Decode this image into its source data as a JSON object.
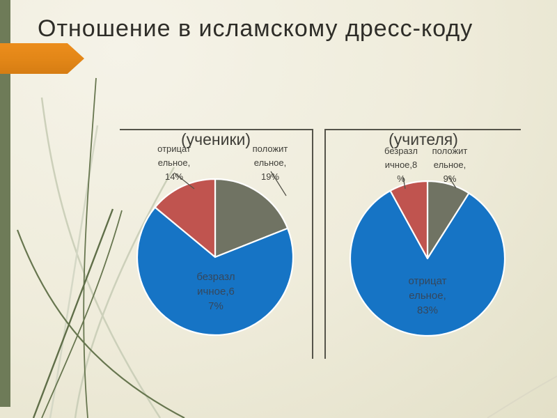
{
  "slide": {
    "title": "Отношение в исламскому дресс-коду",
    "theme_colors": {
      "background": "#efecdb",
      "accent_bar": "#6e7b58",
      "arrow": "#e28617",
      "frame_line": "#55544a",
      "grass_dark": "#67764f",
      "grass_light": "#ccd0ba"
    }
  },
  "chart_data": [
    {
      "type": "pie",
      "title": "(ученики)",
      "legend_position": "none",
      "slices": [
        {
          "name": "положительное",
          "value": 19,
          "color": "#707363"
        },
        {
          "name": "безразличное",
          "value": 67,
          "color": "#1674c5"
        },
        {
          "name": "отрицательное",
          "value": 14,
          "color": "#c0544f"
        }
      ],
      "callouts": {
        "negative": {
          "label": "отрицательное, 14%",
          "lines": [
            "отрицат",
            "ельное,",
            "14%"
          ]
        },
        "positive": {
          "label": "положительное, 19%",
          "lines": [
            "положит",
            "ельное,",
            "19%"
          ]
        },
        "inside": {
          "label": "безразличное, 67%",
          "lines": [
            "безразл",
            "ичное,6",
            "7%"
          ]
        }
      }
    },
    {
      "type": "pie",
      "title": "(учителя)",
      "legend_position": "none",
      "slices": [
        {
          "name": "положительное",
          "value": 9,
          "color": "#707363"
        },
        {
          "name": "отрицательное",
          "value": 83,
          "color": "#1674c5"
        },
        {
          "name": "безразличное",
          "value": 8,
          "color": "#c0544f"
        }
      ],
      "callouts": {
        "indifferent": {
          "label": "безразличное, 8%",
          "lines": [
            "безразл",
            "ичное,8",
            "%"
          ]
        },
        "positive": {
          "label": "положительное, 9%",
          "lines": [
            "положит",
            "ельное,",
            "9%"
          ]
        },
        "inside": {
          "label": "отрицательное, 83%",
          "lines": [
            "отрицат",
            "ельное,",
            "83%"
          ]
        }
      }
    }
  ]
}
